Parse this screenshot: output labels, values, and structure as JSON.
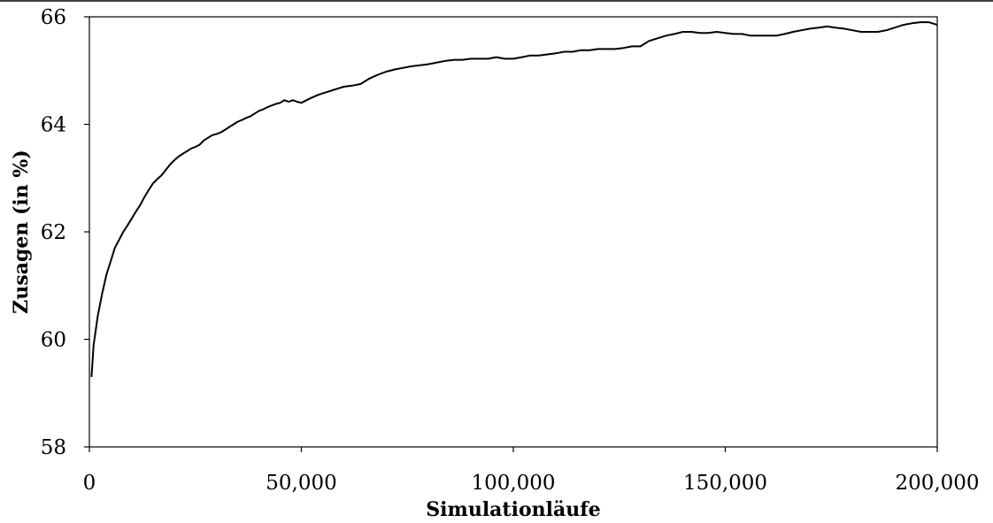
{
  "chart_data": {
    "type": "line",
    "title": "",
    "xlabel": "Simulationläufe",
    "ylabel": "Zusagen (in %)",
    "xlim": [
      0,
      200000
    ],
    "ylim": [
      58,
      66
    ],
    "x_ticks": [
      0,
      50000,
      100000,
      150000,
      200000
    ],
    "x_tick_labels": [
      "0",
      "50,000",
      "100,000",
      "150,000",
      "200,000"
    ],
    "y_ticks": [
      58,
      60,
      62,
      64,
      66
    ],
    "y_tick_labels": [
      "58",
      "60",
      "62",
      "64",
      "66"
    ],
    "grid": false,
    "legend": "none",
    "line_color": "#000000",
    "series": [
      {
        "x": [
          500,
          1000,
          2000,
          3000,
          4000,
          5000,
          6000,
          7000,
          8000,
          9000,
          10000,
          11000,
          12000,
          13000,
          14000,
          15000,
          16000,
          17000,
          18000,
          19000,
          20000,
          21000,
          22000,
          23000,
          24000,
          25000,
          26000,
          27000,
          28000,
          29000,
          30000,
          31000,
          32000,
          33000,
          34000,
          35000,
          36000,
          37000,
          38000,
          39000,
          40000,
          41000,
          42000,
          43000,
          44000,
          45000,
          46000,
          47000,
          48000,
          49000,
          50000,
          52000,
          54000,
          56000,
          58000,
          60000,
          62000,
          64000,
          66000,
          68000,
          70000,
          72000,
          74000,
          76000,
          78000,
          80000,
          82000,
          84000,
          86000,
          88000,
          90000,
          92000,
          94000,
          96000,
          98000,
          100000,
          102000,
          104000,
          106000,
          108000,
          110000,
          112000,
          114000,
          116000,
          118000,
          120000,
          122000,
          124000,
          126000,
          128000,
          130000,
          132000,
          134000,
          136000,
          138000,
          140000,
          142000,
          144000,
          146000,
          148000,
          150000,
          152000,
          154000,
          156000,
          158000,
          160000,
          162000,
          164000,
          166000,
          168000,
          170000,
          172000,
          174000,
          176000,
          178000,
          180000,
          182000,
          184000,
          186000,
          188000,
          190000,
          192000,
          194000,
          196000,
          198000,
          200000
        ],
        "y": [
          59.3,
          59.9,
          60.45,
          60.85,
          61.2,
          61.45,
          61.7,
          61.85,
          62.0,
          62.12,
          62.25,
          62.38,
          62.5,
          62.65,
          62.78,
          62.9,
          62.98,
          63.05,
          63.15,
          63.25,
          63.33,
          63.4,
          63.45,
          63.5,
          63.55,
          63.58,
          63.62,
          63.7,
          63.75,
          63.8,
          63.82,
          63.85,
          63.9,
          63.95,
          64.0,
          64.05,
          64.08,
          64.12,
          64.15,
          64.2,
          64.25,
          64.28,
          64.32,
          64.35,
          64.38,
          64.4,
          64.45,
          64.42,
          64.45,
          64.42,
          64.4,
          64.48,
          64.55,
          64.6,
          64.65,
          64.7,
          64.72,
          64.75,
          64.85,
          64.92,
          64.98,
          65.02,
          65.05,
          65.08,
          65.1,
          65.12,
          65.15,
          65.18,
          65.2,
          65.2,
          65.22,
          65.22,
          65.22,
          65.25,
          65.22,
          65.22,
          65.25,
          65.28,
          65.28,
          65.3,
          65.32,
          65.35,
          65.35,
          65.38,
          65.38,
          65.4,
          65.4,
          65.4,
          65.42,
          65.45,
          65.45,
          65.55,
          65.6,
          65.65,
          65.68,
          65.72,
          65.72,
          65.7,
          65.7,
          65.72,
          65.7,
          65.68,
          65.68,
          65.65,
          65.65,
          65.65,
          65.65,
          65.68,
          65.72,
          65.75,
          65.78,
          65.8,
          65.82,
          65.8,
          65.78,
          65.75,
          65.72,
          65.72,
          65.72,
          65.75,
          65.8,
          65.85,
          65.88,
          65.9,
          65.9,
          65.85
        ]
      }
    ]
  }
}
